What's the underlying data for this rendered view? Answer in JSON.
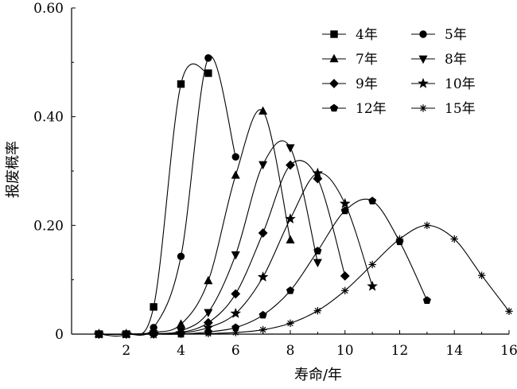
{
  "chart_data": {
    "type": "line",
    "xlabel": "寿命/年",
    "ylabel": "报废概率",
    "xlim": [
      0,
      16
    ],
    "ylim": [
      0,
      0.6
    ],
    "xticks": [
      2,
      4,
      6,
      8,
      10,
      12,
      14,
      16
    ],
    "xtick_labels": [
      "2",
      "4",
      "6",
      "8",
      "10",
      "12",
      "14",
      "16"
    ],
    "yticks": [
      0,
      0.2,
      0.4,
      0.6
    ],
    "ytick_labels": [
      "0",
      "0.20",
      "0.40",
      "0.60"
    ],
    "grid": false,
    "legend_position": "top-right",
    "series": [
      {
        "name": "4年",
        "marker": "square",
        "x": [
          1,
          2,
          3,
          4,
          5
        ],
        "y": [
          0.0,
          0.0,
          0.05,
          0.46,
          0.48
        ]
      },
      {
        "name": "5年",
        "marker": "circle",
        "x": [
          1,
          2,
          3,
          4,
          5,
          6
        ],
        "y": [
          0.0,
          0.0,
          0.012,
          0.143,
          0.508,
          0.326
        ]
      },
      {
        "name": "7年",
        "marker": "triangle-up",
        "x": [
          1,
          2,
          3,
          4,
          5,
          6,
          7,
          8
        ],
        "y": [
          0.0,
          0.0,
          0.003,
          0.018,
          0.098,
          0.292,
          0.41,
          0.173
        ]
      },
      {
        "name": "8年",
        "marker": "triangle-down",
        "x": [
          1,
          2,
          3,
          4,
          5,
          6,
          7,
          8,
          9
        ],
        "y": [
          0.0,
          0.0,
          0.001,
          0.006,
          0.04,
          0.146,
          0.312,
          0.343,
          0.132
        ]
      },
      {
        "name": "9年",
        "marker": "diamond",
        "x": [
          1,
          2,
          3,
          4,
          5,
          6,
          7,
          8,
          9,
          10
        ],
        "y": [
          0.0,
          0.0,
          0.0,
          0.003,
          0.021,
          0.074,
          0.186,
          0.311,
          0.286,
          0.107
        ]
      },
      {
        "name": "10年",
        "marker": "star",
        "x": [
          1,
          2,
          3,
          4,
          5,
          6,
          7,
          8,
          9,
          10,
          11
        ],
        "y": [
          0.0,
          0.0,
          0.0,
          0.002,
          0.012,
          0.038,
          0.105,
          0.212,
          0.296,
          0.24,
          0.088
        ]
      },
      {
        "name": "12年",
        "marker": "pentagon",
        "x": [
          1,
          2,
          3,
          4,
          5,
          6,
          7,
          8,
          9,
          10,
          11,
          12,
          13
        ],
        "y": [
          0.0,
          0.0,
          0.0,
          0.0,
          0.004,
          0.012,
          0.035,
          0.08,
          0.153,
          0.227,
          0.245,
          0.17,
          0.062
        ]
      },
      {
        "name": "15年",
        "marker": "asterisk",
        "x": [
          1,
          2,
          3,
          4,
          5,
          6,
          7,
          8,
          9,
          10,
          11,
          12,
          13,
          14,
          15,
          16
        ],
        "y": [
          0.0,
          0.0,
          0.0,
          0.0,
          0.001,
          0.003,
          0.008,
          0.02,
          0.043,
          0.08,
          0.128,
          0.175,
          0.2,
          0.175,
          0.108,
          0.042
        ]
      }
    ]
  }
}
